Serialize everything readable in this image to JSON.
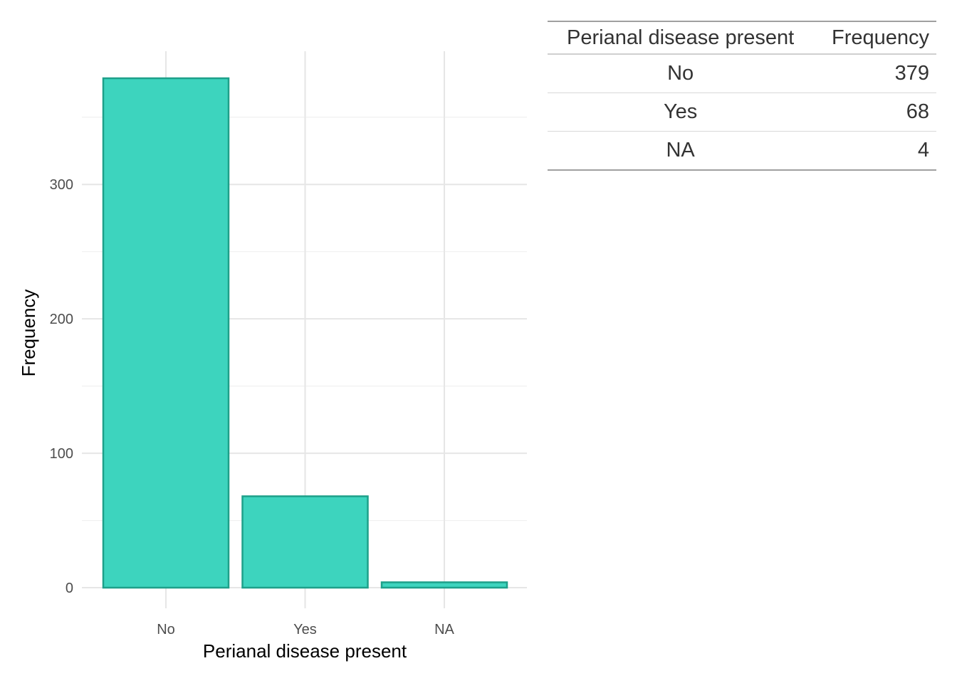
{
  "chart_data": {
    "type": "bar",
    "categories": [
      "No",
      "Yes",
      "NA"
    ],
    "values": [
      379,
      68,
      4
    ],
    "xlabel": "Perianal disease present",
    "ylabel": "Frequency",
    "ylim": [
      0,
      379
    ],
    "yticks": [
      0,
      100,
      200,
      300
    ],
    "y_minor_ticks": [
      50,
      150,
      250,
      350
    ],
    "grid": true,
    "colors": {
      "bar_fill": "#3dd4be",
      "bar_stroke": "#1ea08a",
      "grid_major": "#e6e6e6",
      "grid_minor": "#f0f0f0"
    }
  },
  "table": {
    "headers": [
      "Perianal disease present",
      "Frequency"
    ],
    "rows": [
      [
        "No",
        "379"
      ],
      [
        "Yes",
        "68"
      ],
      [
        "NA",
        "4"
      ]
    ]
  }
}
